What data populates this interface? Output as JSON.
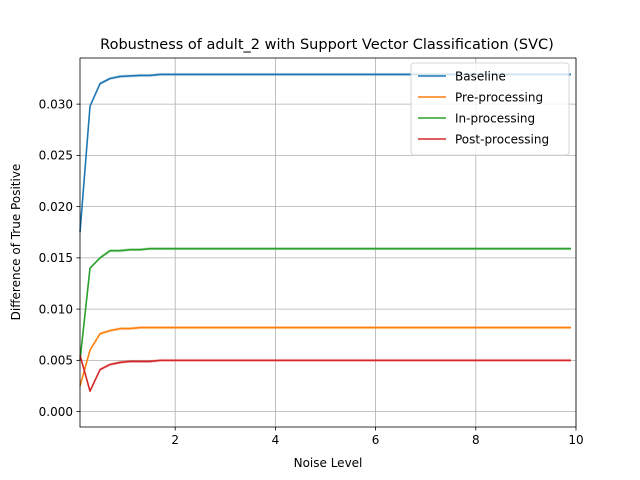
{
  "chart_data": {
    "type": "line",
    "title": "Robustness of adult_2 with Support Vector Classification (SVC)",
    "xlabel": "Noise Level",
    "ylabel": "Difference of True Positive",
    "xlim": [
      0.1,
      10.0
    ],
    "ylim": [
      -0.0015,
      0.0345
    ],
    "xticks": [
      2,
      4,
      6,
      8,
      10
    ],
    "yticks": [
      0.0,
      0.005,
      0.01,
      0.015,
      0.02,
      0.025,
      0.03
    ],
    "ytick_labels": [
      "0.000",
      "0.005",
      "0.010",
      "0.015",
      "0.020",
      "0.025",
      "0.030"
    ],
    "grid": true,
    "legend_position": "top-right",
    "x": [
      0.1,
      0.3,
      0.5,
      0.7,
      0.9,
      1.1,
      1.3,
      1.5,
      1.7,
      2.0,
      3.0,
      4.0,
      5.0,
      6.0,
      7.0,
      8.0,
      9.0,
      9.9
    ],
    "series": [
      {
        "name": "Baseline",
        "color": "#1f77b4",
        "values": [
          0.0175,
          0.0298,
          0.032,
          0.0325,
          0.0327,
          0.03275,
          0.0328,
          0.0328,
          0.0329,
          0.0329,
          0.0329,
          0.0329,
          0.0329,
          0.0329,
          0.0329,
          0.0329,
          0.0329,
          0.0329
        ]
      },
      {
        "name": "Pre-processing",
        "color": "#ff7f0e",
        "values": [
          0.0025,
          0.006,
          0.0076,
          0.0079,
          0.0081,
          0.0081,
          0.0082,
          0.0082,
          0.0082,
          0.0082,
          0.0082,
          0.0082,
          0.0082,
          0.0082,
          0.0082,
          0.0082,
          0.0082,
          0.0082
        ]
      },
      {
        "name": "In-processing",
        "color": "#2ca02c",
        "values": [
          0.005,
          0.014,
          0.015,
          0.0157,
          0.0157,
          0.0158,
          0.0158,
          0.0159,
          0.0159,
          0.0159,
          0.0159,
          0.0159,
          0.0159,
          0.0159,
          0.0159,
          0.0159,
          0.0159,
          0.0159
        ]
      },
      {
        "name": "Post-processing",
        "color": "#d62728",
        "values": [
          0.0055,
          0.002,
          0.0041,
          0.0046,
          0.0048,
          0.0049,
          0.0049,
          0.0049,
          0.005,
          0.005,
          0.005,
          0.005,
          0.005,
          0.005,
          0.005,
          0.005,
          0.005,
          0.005
        ]
      }
    ]
  }
}
